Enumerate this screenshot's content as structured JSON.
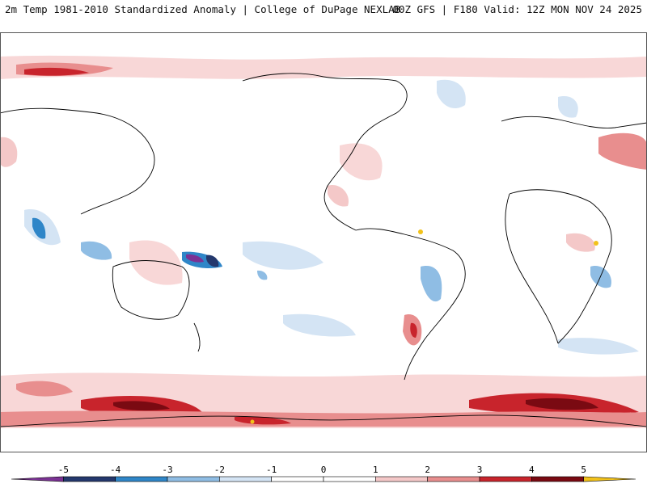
{
  "header": {
    "title_left": "2m Temp 1981-2010 Standardized Anomaly | College of DuPage NEXLAB",
    "title_right": "00Z GFS | F180 Valid: 12Z MON NOV 24 2025"
  },
  "map": {
    "projection": "cylindrical-equidistant",
    "center_longitude": -100,
    "background": "#ffffff",
    "coastline_color": "#000000"
  },
  "colorbar": {
    "ticks": [
      "-5",
      "-4",
      "-3",
      "-2",
      "-1",
      "0",
      "1",
      "2",
      "3",
      "4",
      "5"
    ],
    "colors": [
      "#7b3294",
      "#24386d",
      "#2f86c8",
      "#8fbde4",
      "#d4e4f4",
      "#ffffff",
      "#ffffff",
      "#f4c8c8",
      "#e88e8e",
      "#c8242c",
      "#7a0a12",
      "#f2c21a"
    ]
  }
}
